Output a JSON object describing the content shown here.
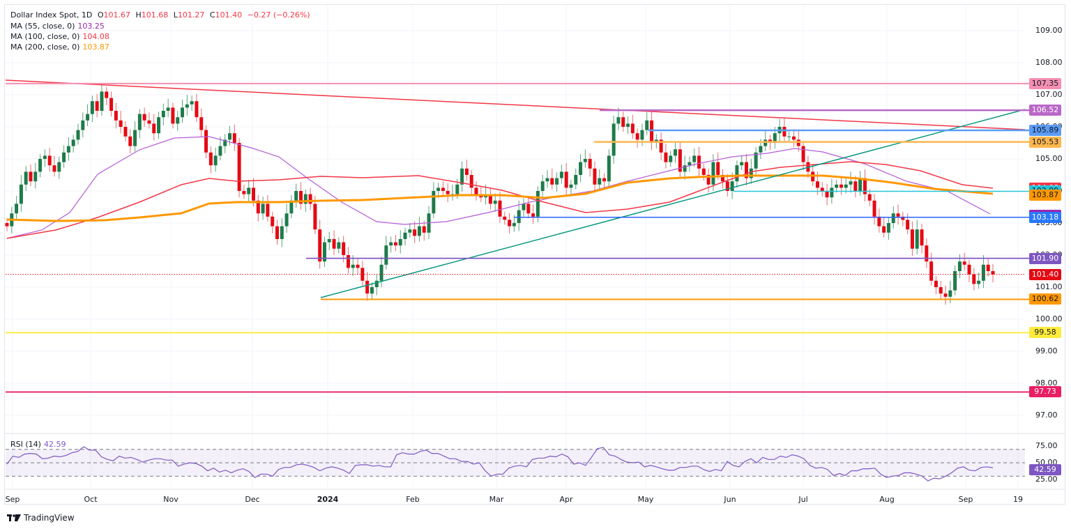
{
  "header": {
    "symbol": "Dollar Index Spot, 1D",
    "open_label": "O",
    "open": "101.67",
    "high_label": "H",
    "high": "101.68",
    "low_label": "L",
    "low": "101.27",
    "close_label": "C",
    "close": "101.40",
    "change": "−0.27 (−0.26%)"
  },
  "indicators": [
    {
      "label": "MA (55, close, 0)",
      "value": "103.25",
      "color": "#9c27b0"
    },
    {
      "label": "MA (100, close, 0)",
      "value": "104.08",
      "color": "#f23645"
    },
    {
      "label": "MA (200, close, 0)",
      "value": "103.87",
      "color": "#ff9800"
    }
  ],
  "rsi": {
    "label": "RSI (14)",
    "value": "42.59",
    "tag": "42.59"
  },
  "brand": "TradingView",
  "chart_data": {
    "type": "candlestick",
    "title": "Dollar Index Spot, 1D",
    "price_axis": {
      "ticks": [
        "109.00",
        "108.00",
        "107.00",
        "106.00",
        "105.00",
        "104.00",
        "103.00",
        "102.00",
        "101.00",
        "100.00",
        "99.00",
        "98.00",
        "97.00"
      ],
      "range": [
        96.6,
        109.6
      ]
    },
    "time_axis": {
      "ticks": [
        "Sep",
        "Oct",
        "Nov",
        "Dec",
        "2024",
        "Feb",
        "Mar",
        "Apr",
        "May",
        "Jun",
        "Jul",
        "Aug",
        "Sep",
        "19"
      ]
    },
    "ohlc_last": {
      "open": 101.67,
      "high": 101.68,
      "low": 101.27,
      "close": 101.4,
      "change": -0.27,
      "change_pct": -0.26
    },
    "moving_averages": [
      {
        "name": "MA 55",
        "last": 103.25,
        "color": "#9c27b0"
      },
      {
        "name": "MA 100",
        "last": 104.08,
        "color": "#f23645"
      },
      {
        "name": "MA 200",
        "last": 103.87,
        "color": "#ff9800"
      }
    ],
    "horizontal_levels": [
      {
        "value": 107.35,
        "color": "#f48fb1"
      },
      {
        "value": 106.52,
        "color": "#ba68c8"
      },
      {
        "value": 105.89,
        "color": "#5b9cf6"
      },
      {
        "value": 105.53,
        "color": "#ffb74d"
      },
      {
        "value": 103.99,
        "color": "#26c6da"
      },
      {
        "value": 103.18,
        "color": "#2962ff"
      },
      {
        "value": 101.9,
        "color": "#7e57c2"
      },
      {
        "value": 101.4,
        "color": "#e50914",
        "style": "dotted",
        "note": "last price"
      },
      {
        "value": 100.62,
        "color": "#ff9800"
      },
      {
        "value": 99.58,
        "color": "#ffeb3b"
      },
      {
        "value": 97.73,
        "color": "#e91e63"
      }
    ],
    "trendlines": [
      {
        "name": "descending resistance",
        "color": "#f23645",
        "from": {
          "x": "Sep 2023",
          "y": 107.5
        },
        "to": {
          "x": "Sep 2024",
          "y": 105.85
        }
      },
      {
        "name": "ascending support",
        "color": "#089981",
        "from": {
          "x": "Dec 28 2023",
          "y": 100.62
        },
        "to": {
          "x": "Sep 2024",
          "y": 106.52
        }
      }
    ],
    "rsi": {
      "period": 14,
      "last": 42.59,
      "levels": [
        70,
        50,
        30
      ],
      "ticks": [
        "75.00",
        "50.00",
        "25.00"
      ],
      "approx_series": [
        48,
        60,
        58,
        63,
        64,
        63,
        56,
        57,
        60,
        59,
        61,
        65,
        67,
        74,
        69,
        69,
        59,
        55,
        53,
        60,
        57,
        58,
        55,
        51,
        54,
        56,
        56,
        54,
        54,
        45,
        48,
        50,
        49,
        45,
        38,
        42,
        36,
        39,
        35,
        39,
        41,
        37,
        28,
        33,
        33,
        30,
        40,
        43,
        43,
        47,
        48,
        46,
        43,
        38,
        42,
        44,
        42,
        39,
        34,
        46,
        47,
        47,
        45,
        46,
        44,
        44,
        62,
        65,
        63,
        63,
        67,
        69,
        64,
        64,
        60,
        56,
        56,
        52,
        52,
        48,
        50,
        38,
        30,
        33,
        33,
        42,
        45,
        46,
        44,
        55,
        57,
        57,
        60,
        59,
        63,
        59,
        48,
        50,
        46,
        58,
        71,
        73,
        62,
        60,
        55,
        51,
        50,
        51,
        44,
        46,
        44,
        41,
        39,
        39,
        43,
        43,
        45,
        45,
        40,
        37,
        40,
        38,
        52,
        46,
        44,
        52,
        56,
        50,
        58,
        55,
        55,
        60,
        58,
        62,
        60,
        56,
        46,
        42,
        43,
        40,
        31,
        34,
        31,
        38,
        38,
        41,
        41,
        42,
        33,
        28,
        30,
        31,
        35,
        35,
        33,
        30,
        23,
        27,
        26,
        30,
        35,
        42,
        44,
        39,
        38,
        43,
        44,
        42.59
      ]
    }
  },
  "tags": [
    {
      "value": "107.35",
      "bg": "#f48fb1",
      "fg": "#131722"
    },
    {
      "value": "106.52",
      "bg": "#ba68c8",
      "fg": "#ffffff"
    },
    {
      "value": "105.89",
      "bg": "#5b9cf6",
      "fg": "#131722"
    },
    {
      "value": "105.53",
      "bg": "#ffb74d",
      "fg": "#131722"
    },
    {
      "value": "104.08",
      "bg": "#f23645",
      "fg": "#ffffff"
    },
    {
      "value": "103.99",
      "bg": "#26c6da",
      "fg": "#131722"
    },
    {
      "value": "103.87",
      "bg": "#ff9800",
      "fg": "#131722"
    },
    {
      "value": "103.25",
      "bg": "#9c27b0",
      "fg": "#ffffff"
    },
    {
      "value": "103.18",
      "bg": "#2979ff",
      "fg": "#ffffff"
    },
    {
      "value": "101.90",
      "bg": "#7e57c2",
      "fg": "#ffffff"
    },
    {
      "value": "101.40",
      "bg": "#e50914",
      "fg": "#ffffff"
    },
    {
      "value": "100.62",
      "bg": "#ff9800",
      "fg": "#131722"
    },
    {
      "value": "99.58",
      "bg": "#ffeb3b",
      "fg": "#131722"
    },
    {
      "value": "97.73",
      "bg": "#e91e63",
      "fg": "#ffffff"
    }
  ]
}
